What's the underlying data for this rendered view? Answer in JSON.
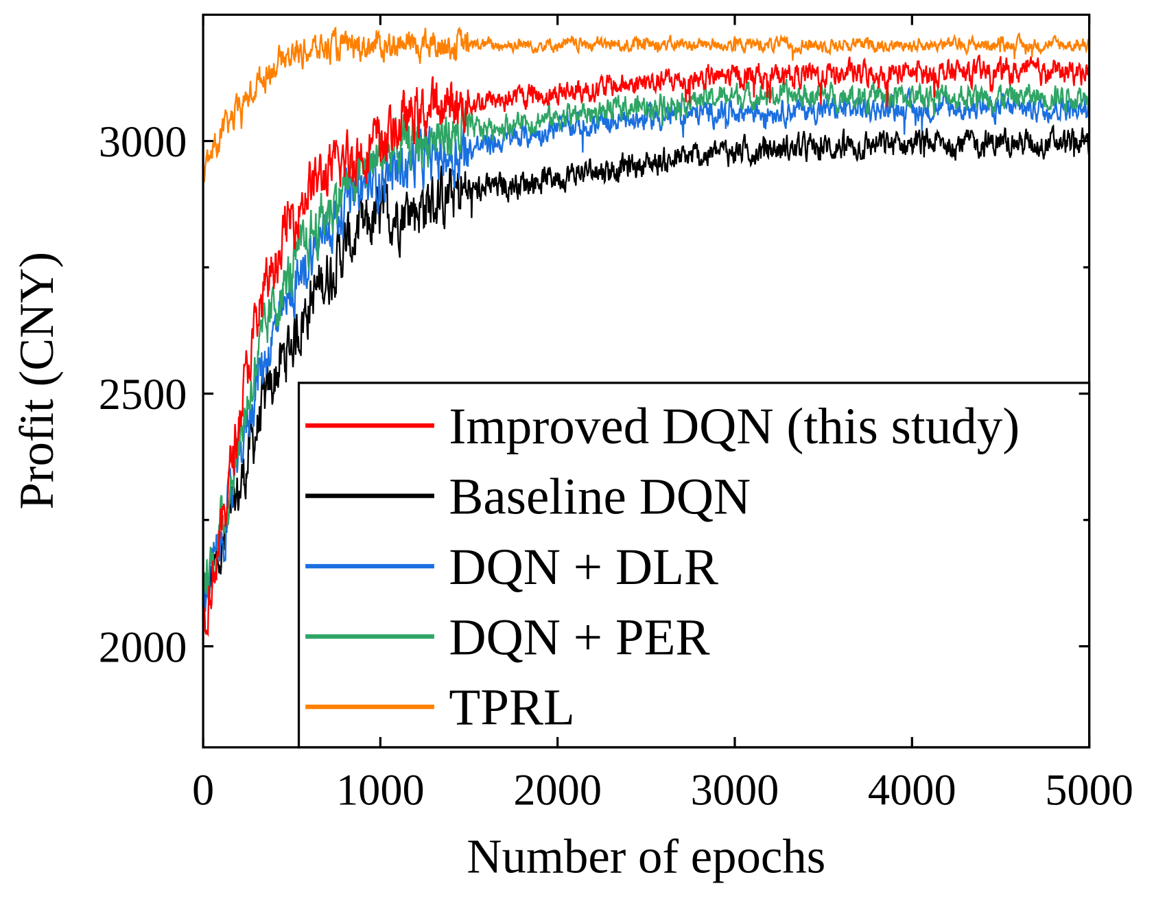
{
  "chart_data": {
    "type": "line",
    "title": "",
    "xlabel": "Number of epochs",
    "ylabel": "Profit (CNY)",
    "xlim": [
      0,
      5000
    ],
    "ylim": [
      1800,
      3250
    ],
    "x_ticks": [
      0,
      1000,
      2000,
      3000,
      4000,
      5000
    ],
    "x_tick_labels": [
      "0",
      "1000",
      "2000",
      "3000",
      "4000",
      "5000"
    ],
    "y_ticks": [
      2000,
      2500,
      3000
    ],
    "y_tick_labels": [
      "2000",
      "2500",
      "3000"
    ],
    "y_minor_ticks": [
      2250,
      2750
    ],
    "grid": false,
    "legend_position": "bottom-right",
    "series": [
      {
        "name": "Improved DQN (this study)",
        "color": "#ff0000",
        "noise": 18,
        "x": [
          0,
          100,
          200,
          300,
          400,
          500,
          600,
          800,
          1000,
          1200,
          1500,
          2000,
          2500,
          3000,
          4000,
          5000
        ],
        "y": [
          2050,
          2220,
          2450,
          2640,
          2760,
          2850,
          2910,
          2960,
          3000,
          3055,
          3075,
          3095,
          3115,
          3128,
          3135,
          3137
        ]
      },
      {
        "name": "Baseline DQN",
        "color": "#000000",
        "noise": 20,
        "x": [
          0,
          100,
          200,
          300,
          400,
          500,
          600,
          800,
          1000,
          1200,
          1500,
          2000,
          2500,
          3000,
          4000,
          5000
        ],
        "y": [
          2080,
          2180,
          2300,
          2430,
          2530,
          2600,
          2680,
          2790,
          2850,
          2870,
          2900,
          2930,
          2955,
          2980,
          2995,
          2997
        ]
      },
      {
        "name": "DQN + DLR",
        "color": "#1a6fe0",
        "noise": 18,
        "x": [
          0,
          100,
          200,
          300,
          400,
          500,
          600,
          800,
          1000,
          1200,
          1500,
          2000,
          2500,
          3000,
          4000,
          5000
        ],
        "y": [
          2100,
          2200,
          2370,
          2520,
          2620,
          2690,
          2770,
          2880,
          2930,
          2960,
          2985,
          3025,
          3045,
          3060,
          3065,
          3066
        ]
      },
      {
        "name": "DQN + PER",
        "color": "#2ea564",
        "noise": 18,
        "x": [
          0,
          100,
          200,
          300,
          400,
          500,
          600,
          800,
          1000,
          1200,
          1500,
          2000,
          2500,
          3000,
          4000,
          5000
        ],
        "y": [
          2110,
          2230,
          2400,
          2560,
          2670,
          2740,
          2810,
          2910,
          2970,
          3000,
          3020,
          3048,
          3070,
          3090,
          3088,
          3089
        ]
      },
      {
        "name": "TPRL",
        "color": "#ff8000",
        "noise": 10,
        "x": [
          0,
          50,
          100,
          200,
          300,
          400,
          500,
          600,
          800,
          1000,
          2000,
          3000,
          4000,
          5000
        ],
        "y": [
          2930,
          2980,
          3010,
          3060,
          3110,
          3150,
          3175,
          3180,
          3188,
          3190,
          3191,
          3191,
          3191,
          3191
        ]
      }
    ]
  }
}
